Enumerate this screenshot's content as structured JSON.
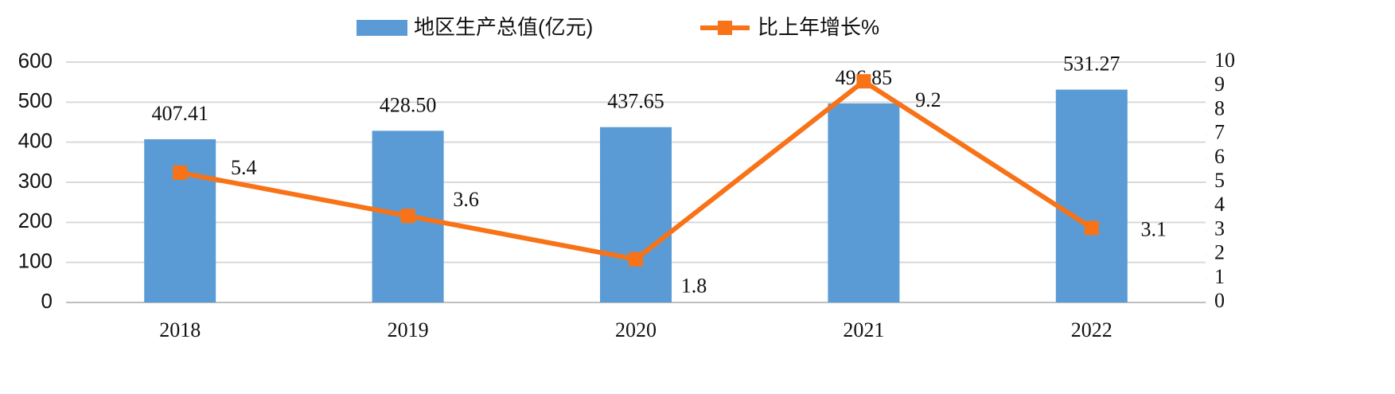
{
  "chart_data": {
    "type": "bar_line",
    "categories": [
      "2018",
      "2019",
      "2020",
      "2021",
      "2022"
    ],
    "series": [
      {
        "name": "地区生产总值(亿元)",
        "type": "bar",
        "color": "#5b9bd5",
        "values": [
          407.41,
          428.5,
          437.65,
          496.85,
          531.27
        ],
        "value_labels": [
          "407.41",
          "428.50",
          "437.65",
          "496.85",
          "531.27"
        ]
      },
      {
        "name": "比上年增长%",
        "type": "line",
        "axis": "y2",
        "color": "#f87217",
        "values": [
          5.4,
          3.6,
          1.8,
          9.2,
          3.1
        ]
      }
    ],
    "ylim": [
      0,
      600
    ],
    "yticks": [
      0,
      100,
      200,
      300,
      400,
      500,
      600
    ],
    "y2lim": [
      0,
      10
    ],
    "y2ticks": [
      0,
      1,
      2,
      3,
      4,
      5,
      6,
      7,
      8,
      9,
      10
    ],
    "grid": true,
    "legend": "top"
  }
}
